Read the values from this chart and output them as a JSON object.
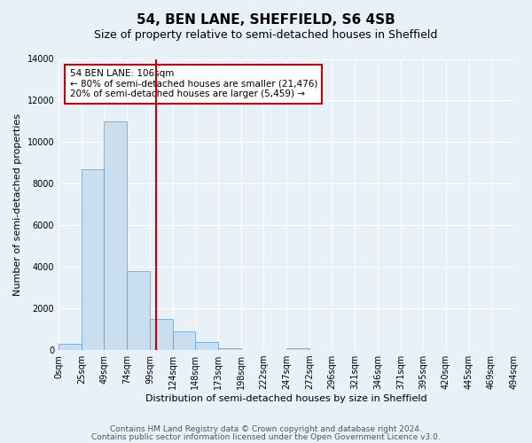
{
  "title": "54, BEN LANE, SHEFFIELD, S6 4SB",
  "subtitle": "Size of property relative to semi-detached houses in Sheffield",
  "bar_values": [
    300,
    8700,
    11000,
    3800,
    1500,
    900,
    400,
    100,
    0,
    0,
    100,
    0,
    0,
    0,
    0,
    0,
    0,
    0,
    0,
    0
  ],
  "bin_edges": [
    0,
    25,
    49,
    74,
    99,
    124,
    148,
    173,
    198,
    222,
    247,
    272,
    296,
    321,
    346,
    371,
    395,
    420,
    445,
    469,
    494
  ],
  "tick_labels": [
    "0sqm",
    "25sqm",
    "49sqm",
    "74sqm",
    "99sqm",
    "124sqm",
    "148sqm",
    "173sqm",
    "198sqm",
    "222sqm",
    "247sqm",
    "272sqm",
    "296sqm",
    "321sqm",
    "346sqm",
    "371sqm",
    "395sqm",
    "420sqm",
    "445sqm",
    "469sqm",
    "494sqm"
  ],
  "xlabel": "Distribution of semi-detached houses by size in Sheffield",
  "ylabel": "Number of semi-detached properties",
  "ylim": [
    0,
    14000
  ],
  "yticks": [
    0,
    2000,
    4000,
    6000,
    8000,
    10000,
    12000,
    14000
  ],
  "bar_color": "#c9dff0",
  "bar_edge_color": "#5b9bd5",
  "vline_x": 106,
  "vline_color": "#cc0000",
  "annotation_title": "54 BEN LANE: 106sqm",
  "annotation_line1": "← 80% of semi-detached houses are smaller (21,476)",
  "annotation_line2": "20% of semi-detached houses are larger (5,459) →",
  "annotation_box_color": "#ffffff",
  "annotation_box_edge": "#cc0000",
  "footer1": "Contains HM Land Registry data © Crown copyright and database right 2024.",
  "footer2": "Contains public sector information licensed under the Open Government Licence v3.0.",
  "bg_color": "#e8f0f8",
  "plot_bg_color": "#e8f0f8",
  "title_fontsize": 11,
  "subtitle_fontsize": 9,
  "axis_label_fontsize": 8,
  "tick_fontsize": 7,
  "footer_fontsize": 6.5
}
